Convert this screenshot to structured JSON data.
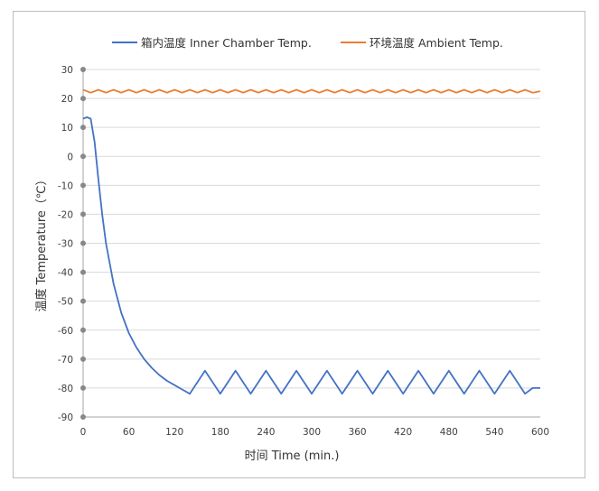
{
  "chart_data": {
    "type": "line",
    "xlabel": "时间 Time (min.)",
    "ylabel": "温度 Temperature（℃）",
    "xlim": [
      0,
      600
    ],
    "ylim": [
      -90,
      30
    ],
    "x_ticks": [
      0,
      60,
      120,
      180,
      240,
      300,
      360,
      420,
      480,
      540,
      600
    ],
    "y_ticks": [
      30,
      20,
      10,
      0,
      -10,
      -20,
      -30,
      -40,
      -50,
      -60,
      -70,
      -80,
      -90
    ],
    "x_tick_labels": [
      "0",
      "60",
      "120",
      "180",
      "240",
      "300",
      "360",
      "420",
      "480",
      "540",
      "600"
    ],
    "y_tick_labels": [
      "30",
      "20",
      "10",
      "0",
      "-10",
      "-20",
      "-30",
      "-40",
      "-50",
      "-60",
      "-70",
      "-80",
      "-90"
    ],
    "grid": "horizontal",
    "legend": "top-center",
    "series": [
      {
        "name": "箱内温度 Inner Chamber Temp.",
        "color": "#4472c4",
        "points": [
          [
            0,
            13
          ],
          [
            5,
            13.5
          ],
          [
            10,
            13
          ],
          [
            15,
            5
          ],
          [
            20,
            -8
          ],
          [
            25,
            -20
          ],
          [
            30,
            -30
          ],
          [
            40,
            -44
          ],
          [
            50,
            -54
          ],
          [
            60,
            -61
          ],
          [
            70,
            -66
          ],
          [
            80,
            -70
          ],
          [
            90,
            -73
          ],
          [
            100,
            -75.5
          ],
          [
            110,
            -77.5
          ],
          [
            120,
            -79
          ],
          [
            130,
            -80.5
          ],
          [
            140,
            -82
          ],
          [
            160,
            -74
          ],
          [
            180,
            -82
          ],
          [
            200,
            -74
          ],
          [
            220,
            -82
          ],
          [
            240,
            -74
          ],
          [
            260,
            -82
          ],
          [
            280,
            -74
          ],
          [
            300,
            -82
          ],
          [
            320,
            -74
          ],
          [
            340,
            -82
          ],
          [
            360,
            -74
          ],
          [
            380,
            -82
          ],
          [
            400,
            -74
          ],
          [
            420,
            -82
          ],
          [
            440,
            -74
          ],
          [
            460,
            -82
          ],
          [
            480,
            -74
          ],
          [
            500,
            -82
          ],
          [
            520,
            -74
          ],
          [
            540,
            -82
          ],
          [
            560,
            -74
          ],
          [
            580,
            -82
          ],
          [
            590,
            -80
          ],
          [
            600,
            -80
          ]
        ]
      },
      {
        "name": "环境温度 Ambient Temp.",
        "color": "#ed7d31",
        "points": [
          [
            0,
            23
          ],
          [
            10,
            22
          ],
          [
            20,
            23
          ],
          [
            30,
            22
          ],
          [
            40,
            23
          ],
          [
            50,
            22
          ],
          [
            60,
            23
          ],
          [
            70,
            22
          ],
          [
            80,
            23
          ],
          [
            90,
            22
          ],
          [
            100,
            23
          ],
          [
            110,
            22
          ],
          [
            120,
            23
          ],
          [
            130,
            22
          ],
          [
            140,
            23
          ],
          [
            150,
            22
          ],
          [
            160,
            23
          ],
          [
            170,
            22
          ],
          [
            180,
            23
          ],
          [
            190,
            22
          ],
          [
            200,
            23
          ],
          [
            210,
            22
          ],
          [
            220,
            23
          ],
          [
            230,
            22
          ],
          [
            240,
            23
          ],
          [
            250,
            22
          ],
          [
            260,
            23
          ],
          [
            270,
            22
          ],
          [
            280,
            23
          ],
          [
            290,
            22
          ],
          [
            300,
            23
          ],
          [
            310,
            22
          ],
          [
            320,
            23
          ],
          [
            330,
            22
          ],
          [
            340,
            23
          ],
          [
            350,
            22
          ],
          [
            360,
            23
          ],
          [
            370,
            22
          ],
          [
            380,
            23
          ],
          [
            390,
            22
          ],
          [
            400,
            23
          ],
          [
            410,
            22
          ],
          [
            420,
            23
          ],
          [
            430,
            22
          ],
          [
            440,
            23
          ],
          [
            450,
            22
          ],
          [
            460,
            23
          ],
          [
            470,
            22
          ],
          [
            480,
            23
          ],
          [
            490,
            22
          ],
          [
            500,
            23
          ],
          [
            510,
            22
          ],
          [
            520,
            23
          ],
          [
            530,
            22
          ],
          [
            540,
            23
          ],
          [
            550,
            22
          ],
          [
            560,
            23
          ],
          [
            570,
            22
          ],
          [
            580,
            23
          ],
          [
            590,
            22
          ],
          [
            600,
            22.5
          ]
        ]
      }
    ]
  }
}
